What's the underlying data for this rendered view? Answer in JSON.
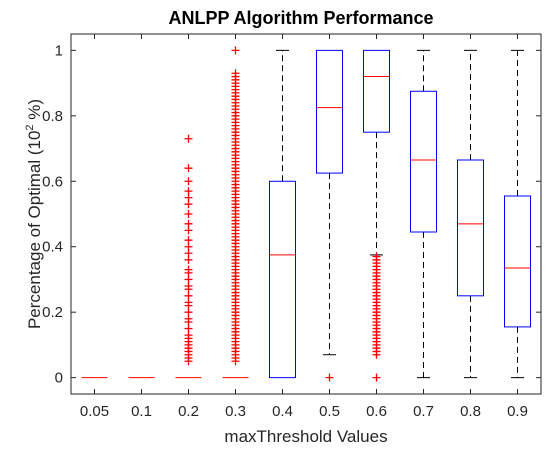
{
  "chart_data": {
    "type": "boxplot",
    "title": "ANLPP Algorithm Performance",
    "xlabel": "maxThreshold Values",
    "ylabel_main": "Percentage of Optimal (10",
    "ylabel_sup": "2",
    "ylabel_tail": " %)",
    "ylim": [
      -0.05,
      1.05
    ],
    "yticks": [
      0,
      0.2,
      0.4,
      0.6,
      0.8,
      1
    ],
    "ytick_labels": [
      "0",
      "0.2",
      "0.4",
      "0.6",
      "0.8",
      "1"
    ],
    "categories": [
      "0.05",
      "0.1",
      "0.2",
      "0.3",
      "0.4",
      "0.5",
      "0.6",
      "0.7",
      "0.8",
      "0.9"
    ],
    "grid": false,
    "colors": {
      "box": "#0000ff",
      "median": "#ff0000",
      "whisker": "#000000",
      "outlier": "#ff0000",
      "axis": "#262626"
    },
    "boxes": [
      {
        "category": "0.05",
        "min": 0,
        "q1": 0,
        "median": 0,
        "q3": 0,
        "max": 0,
        "outliers": []
      },
      {
        "category": "0.1",
        "min": 0,
        "q1": 0,
        "median": 0,
        "q3": 0,
        "max": 0,
        "outliers": []
      },
      {
        "category": "0.2",
        "min": 0,
        "q1": 0,
        "median": 0,
        "q3": 0,
        "max": 0,
        "outliers": [
          0.05,
          0.06,
          0.07,
          0.08,
          0.09,
          0.1,
          0.11,
          0.12,
          0.13,
          0.15,
          0.17,
          0.18,
          0.2,
          0.22,
          0.23,
          0.25,
          0.27,
          0.28,
          0.3,
          0.32,
          0.33,
          0.36,
          0.38,
          0.4,
          0.42,
          0.45,
          0.47,
          0.5,
          0.53,
          0.55,
          0.57,
          0.6,
          0.64,
          0.73
        ]
      },
      {
        "category": "0.3",
        "min": 0,
        "q1": 0,
        "median": 0,
        "q3": 0,
        "max": 0,
        "outliers": [
          0.05,
          0.06,
          0.07,
          0.08,
          0.09,
          0.1,
          0.11,
          0.12,
          0.13,
          0.14,
          0.15,
          0.16,
          0.17,
          0.18,
          0.19,
          0.2,
          0.21,
          0.22,
          0.23,
          0.24,
          0.25,
          0.26,
          0.27,
          0.28,
          0.29,
          0.3,
          0.31,
          0.32,
          0.33,
          0.34,
          0.35,
          0.36,
          0.37,
          0.38,
          0.39,
          0.4,
          0.41,
          0.42,
          0.43,
          0.44,
          0.45,
          0.46,
          0.47,
          0.48,
          0.49,
          0.5,
          0.51,
          0.52,
          0.53,
          0.54,
          0.55,
          0.56,
          0.57,
          0.58,
          0.59,
          0.6,
          0.61,
          0.62,
          0.63,
          0.64,
          0.65,
          0.66,
          0.67,
          0.68,
          0.69,
          0.7,
          0.71,
          0.72,
          0.73,
          0.74,
          0.75,
          0.76,
          0.77,
          0.78,
          0.79,
          0.8,
          0.81,
          0.82,
          0.83,
          0.84,
          0.85,
          0.86,
          0.87,
          0.88,
          0.89,
          0.9,
          0.91,
          0.92,
          0.93,
          1.0
        ]
      },
      {
        "category": "0.4",
        "min": 0,
        "q1": 0,
        "median": 0.375,
        "q3": 0.6,
        "max": 1.0,
        "outliers": []
      },
      {
        "category": "0.5",
        "min": 0.07,
        "q1": 0.625,
        "median": 0.825,
        "q3": 1.0,
        "max": 1.0,
        "outliers": [
          0
        ]
      },
      {
        "category": "0.6",
        "min": 0.375,
        "q1": 0.75,
        "median": 0.92,
        "q3": 1.0,
        "max": 1.0,
        "outliers": [
          0,
          0.07,
          0.08,
          0.09,
          0.1,
          0.11,
          0.12,
          0.13,
          0.14,
          0.15,
          0.16,
          0.17,
          0.18,
          0.19,
          0.2,
          0.21,
          0.22,
          0.23,
          0.24,
          0.25,
          0.26,
          0.27,
          0.28,
          0.29,
          0.3,
          0.31,
          0.32,
          0.33,
          0.34,
          0.35,
          0.36,
          0.37
        ]
      },
      {
        "category": "0.7",
        "min": 0,
        "q1": 0.445,
        "median": 0.665,
        "q3": 0.875,
        "max": 1.0,
        "outliers": []
      },
      {
        "category": "0.8",
        "min": 0,
        "q1": 0.25,
        "median": 0.47,
        "q3": 0.665,
        "max": 1.0,
        "outliers": []
      },
      {
        "category": "0.9",
        "min": 0,
        "q1": 0.155,
        "median": 0.335,
        "q3": 0.555,
        "max": 1.0,
        "outliers": []
      }
    ]
  }
}
